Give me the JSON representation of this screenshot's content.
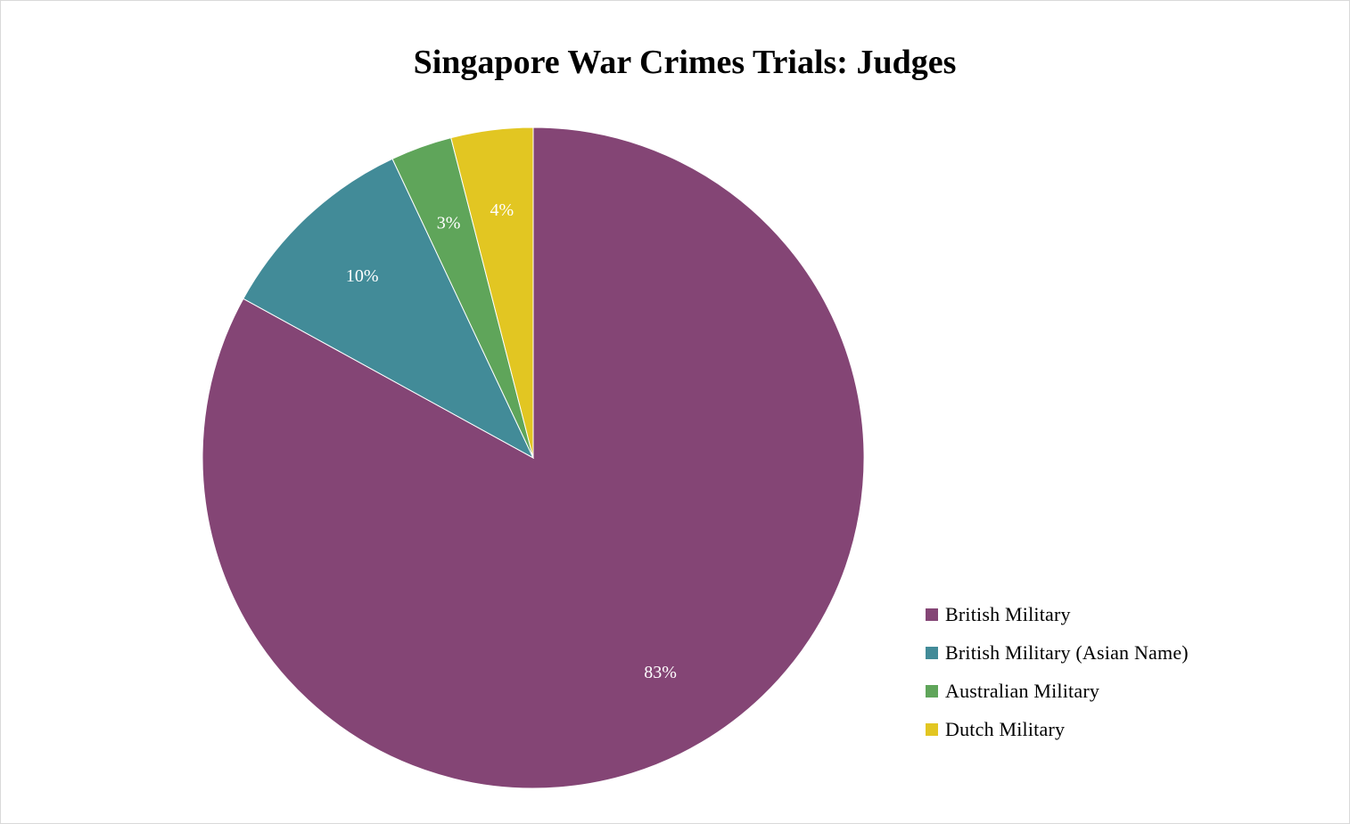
{
  "chart_data": {
    "type": "pie",
    "title": "Singapore War Crimes Trials: Judges",
    "slices": [
      {
        "name": "British Military",
        "value": 83,
        "label": "83%",
        "color": "#844575"
      },
      {
        "name": "British Military (Asian Name)",
        "value": 10,
        "label": "10%",
        "color": "#428B98"
      },
      {
        "name": "Australian Military",
        "value": 3,
        "label": "3%",
        "color": "#5FA55A"
      },
      {
        "name": "Dutch Military",
        "value": 4,
        "label": "4%",
        "color": "#E2C622"
      }
    ],
    "legend_position": "bottom-right",
    "start_angle": "12 o'clock",
    "direction": "clockwise"
  }
}
